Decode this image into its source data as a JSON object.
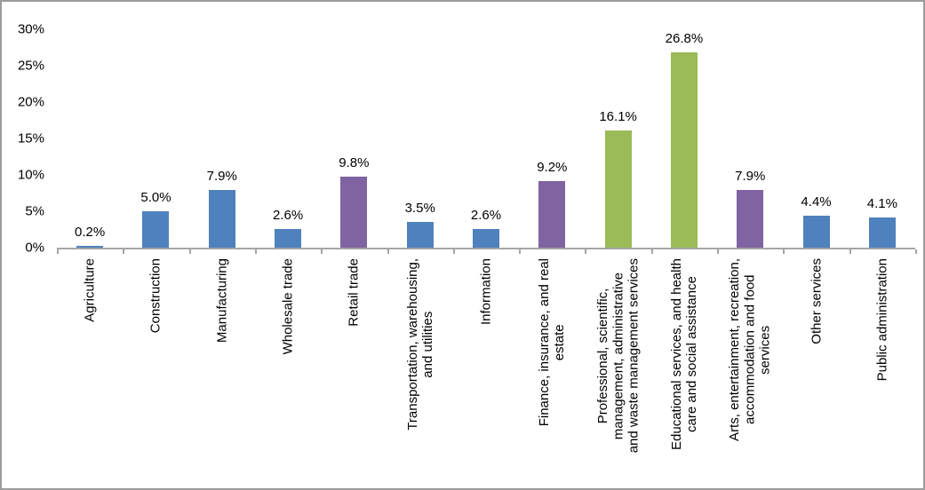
{
  "frame": {
    "border_color": "#9C9C9C",
    "background_color": "#FFFFFF"
  },
  "chart_data": {
    "type": "bar",
    "title": "",
    "xlabel": "",
    "ylabel": "",
    "categories": [
      "Agriculture",
      "Construction",
      "Manufacturing",
      "Wholesale trade",
      "Retail trade",
      "Transportation, warehousing,\nand utilities",
      "Information",
      "Finance, insurance, and real\nestate",
      "Professional, scientific,\nmanagement, administrative\nand waste management services",
      "Educational services, and health\ncare and social assistance",
      "Arts, entertainment, recreation,\naccommodation and food\nservices",
      "Other services",
      "Public administration"
    ],
    "values": [
      0.2,
      5.0,
      7.9,
      2.6,
      9.8,
      3.5,
      2.6,
      9.2,
      16.1,
      26.8,
      7.9,
      4.4,
      4.1
    ],
    "value_labels": [
      "0.2%",
      "5.0%",
      "7.9%",
      "2.6%",
      "9.8%",
      "3.5%",
      "2.6%",
      "9.2%",
      "16.1%",
      "26.8%",
      "7.9%",
      "4.4%",
      "4.1%"
    ],
    "bar_colors": [
      "#4F81BD",
      "#4F81BD",
      "#4F81BD",
      "#4F81BD",
      "#8064A2",
      "#4F81BD",
      "#4F81BD",
      "#8064A2",
      "#9BBB59",
      "#9BBB59",
      "#8064A2",
      "#4F81BD",
      "#4F81BD"
    ],
    "palette": {
      "blue": "#4F81BD",
      "purple": "#8064A2",
      "green": "#9BBB59"
    },
    "ylim": [
      0,
      30
    ],
    "ytick_values": [
      30,
      25,
      20,
      15,
      10,
      5,
      0
    ],
    "ytick_labels": [
      "30%",
      "25%",
      "20%",
      "15%",
      "10%",
      "5%",
      "0%"
    ],
    "grid": false,
    "legend": false,
    "axis_color": "#A6A6A6",
    "text_color": "#000000",
    "bar_orientation": "vertical",
    "category_label_rotation_deg": 90
  }
}
